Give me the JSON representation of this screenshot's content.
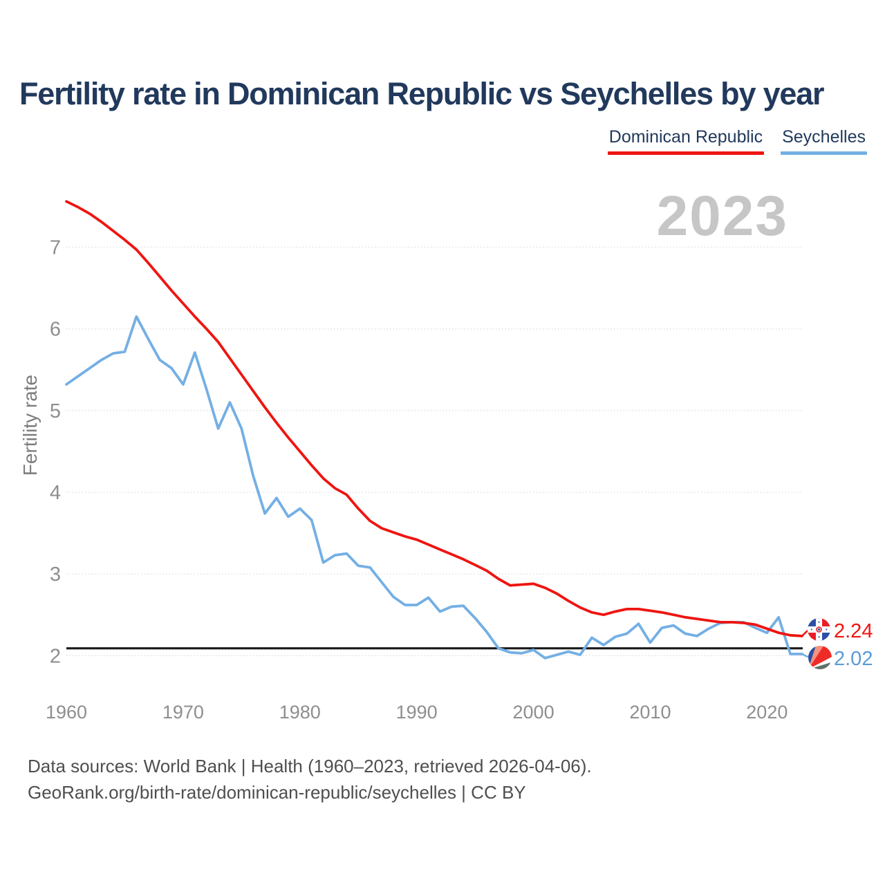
{
  "title": "Fertility rate in Dominican Republic vs Seychelles by year",
  "watermark_year": "2023",
  "legend": [
    {
      "label": "Dominican Republic",
      "color": "#ee1511"
    },
    {
      "label": "Seychelles",
      "color": "#74afe4"
    }
  ],
  "y_axis": {
    "label": "Fertility rate",
    "ticks": [
      7,
      6,
      5,
      4,
      3,
      2
    ]
  },
  "x_axis": {
    "ticks": [
      1960,
      1970,
      1980,
      1990,
      2000,
      2010,
      2020
    ]
  },
  "reference_line": {
    "value": 2.09,
    "color": "#1a1a1a"
  },
  "end_labels": [
    {
      "series": "Dominican Republic",
      "value": "2.24",
      "color": "#ee1511",
      "flag": "dominican-republic-flag"
    },
    {
      "series": "Seychelles",
      "value": "2.02",
      "color": "#5b9bd8",
      "flag": "seychelles-flag"
    }
  ],
  "footer": {
    "line1": "Data sources: World Bank | Health (1960–2023, retrieved 2026-04-06).",
    "line2": "GeoRank.org/birth-rate/dominican-republic/seychelles | CC BY"
  },
  "chart_data": {
    "type": "line",
    "title": "Fertility rate in Dominican Republic vs Seychelles by year",
    "xlabel": "",
    "ylabel": "Fertility rate",
    "xlim": [
      1960,
      2023
    ],
    "ylim": [
      1.9,
      7.7
    ],
    "grid": true,
    "legend_position": "top-right",
    "annotation": "2023",
    "reference_line_y": 2.09,
    "x": [
      1960,
      1961,
      1962,
      1963,
      1964,
      1965,
      1966,
      1967,
      1968,
      1969,
      1970,
      1971,
      1972,
      1973,
      1974,
      1975,
      1976,
      1977,
      1978,
      1979,
      1980,
      1981,
      1982,
      1983,
      1984,
      1985,
      1986,
      1987,
      1988,
      1989,
      1990,
      1991,
      1992,
      1993,
      1994,
      1995,
      1996,
      1997,
      1998,
      1999,
      2000,
      2001,
      2002,
      2003,
      2004,
      2005,
      2006,
      2007,
      2008,
      2009,
      2010,
      2011,
      2012,
      2013,
      2014,
      2015,
      2016,
      2017,
      2018,
      2019,
      2020,
      2021,
      2022,
      2023
    ],
    "series": [
      {
        "name": "Dominican Republic",
        "color": "#ee1511",
        "values": [
          7.56,
          7.49,
          7.41,
          7.31,
          7.2,
          7.09,
          6.97,
          6.81,
          6.64,
          6.47,
          6.31,
          6.15,
          6.0,
          5.84,
          5.64,
          5.44,
          5.24,
          5.04,
          4.85,
          4.67,
          4.5,
          4.33,
          4.17,
          4.05,
          3.97,
          3.8,
          3.65,
          3.56,
          3.51,
          3.46,
          3.42,
          3.36,
          3.3,
          3.24,
          3.18,
          3.11,
          3.04,
          2.94,
          2.86,
          2.87,
          2.88,
          2.83,
          2.76,
          2.67,
          2.59,
          2.53,
          2.5,
          2.54,
          2.57,
          2.57,
          2.55,
          2.53,
          2.5,
          2.47,
          2.45,
          2.43,
          2.41,
          2.41,
          2.4,
          2.38,
          2.33,
          2.28,
          2.25,
          2.24
        ]
      },
      {
        "name": "Seychelles",
        "color": "#74afe4",
        "values": [
          5.32,
          5.42,
          5.52,
          5.62,
          5.7,
          5.72,
          6.15,
          5.88,
          5.62,
          5.52,
          5.32,
          5.71,
          5.26,
          4.78,
          5.1,
          4.78,
          4.2,
          3.74,
          3.93,
          3.7,
          3.8,
          3.66,
          3.14,
          3.23,
          3.25,
          3.1,
          3.08,
          2.9,
          2.72,
          2.62,
          2.62,
          2.71,
          2.54,
          2.6,
          2.61,
          2.46,
          2.29,
          2.09,
          2.04,
          2.03,
          2.07,
          1.97,
          2.01,
          2.05,
          2.01,
          2.22,
          2.13,
          2.23,
          2.27,
          2.39,
          2.16,
          2.34,
          2.37,
          2.27,
          2.24,
          2.33,
          2.4,
          2.41,
          2.41,
          2.34,
          2.28,
          2.47,
          2.02,
          2.02
        ]
      }
    ]
  }
}
